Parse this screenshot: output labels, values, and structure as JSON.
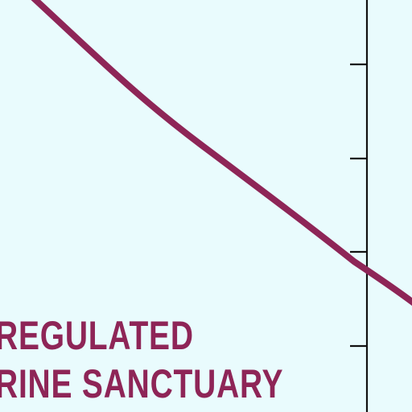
{
  "map": {
    "background_color": "#e9fbfd",
    "boundary_color": "#8e2557",
    "grid_line_color": "#111111",
    "labels": {
      "line1": "REGULATED",
      "line2": "RINE SANCTUARY"
    }
  }
}
